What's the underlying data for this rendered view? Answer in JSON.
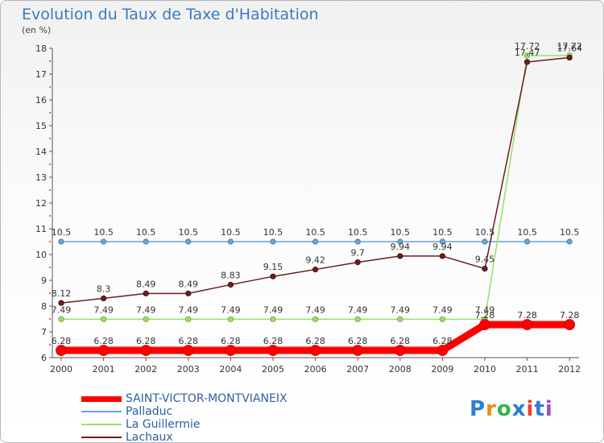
{
  "header": {
    "title": "Evolution du Taux de Taxe d'Habitation",
    "unit": "(en %)"
  },
  "chart_data": {
    "type": "line",
    "title": "Evolution du Taux de Taxe d'Habitation",
    "ylabel": "(en %)",
    "xlabel": "",
    "x": [
      "2000",
      "2001",
      "2002",
      "2003",
      "2004",
      "2005",
      "2006",
      "2007",
      "2008",
      "2009",
      "2010",
      "2011",
      "2012"
    ],
    "ylim": [
      6,
      18
    ],
    "yticks": [
      6,
      7,
      8,
      9,
      10,
      11,
      12,
      13,
      14,
      15,
      16,
      17,
      18
    ],
    "grid": false,
    "legend_position": "bottom-left",
    "series": [
      {
        "name": "SAINT-VICTOR-MONTVIANEIX",
        "color": "#ff0000",
        "values": [
          6.28,
          6.28,
          6.28,
          6.28,
          6.28,
          6.28,
          6.28,
          6.28,
          6.28,
          6.28,
          7.28,
          7.28,
          7.28
        ],
        "labels": [
          "6.28",
          "6.28",
          "6.28",
          "6.28",
          "6.28",
          "6.28",
          "6.28",
          "6.28",
          "6.28",
          "6.28",
          "7.28",
          "7.28",
          "7.28"
        ]
      },
      {
        "name": "Palladuc",
        "color": "#6aa3d6",
        "values": [
          10.5,
          10.5,
          10.5,
          10.5,
          10.5,
          10.5,
          10.5,
          10.5,
          10.5,
          10.5,
          10.5,
          10.5,
          10.5
        ],
        "labels": [
          "10.5",
          "10.5",
          "10.5",
          "10.5",
          "10.5",
          "10.5",
          "10.5",
          "10.5",
          "10.5",
          "10.5",
          "10.5",
          "10.5",
          "10.5"
        ]
      },
      {
        "name": "La Guillermie",
        "color": "#99e070",
        "values": [
          7.49,
          7.49,
          7.49,
          7.49,
          7.49,
          7.49,
          7.49,
          7.49,
          7.49,
          7.49,
          7.49,
          17.72,
          17.72
        ],
        "labels": [
          "7.49",
          "7.49",
          "7.49",
          "7.49",
          "7.49",
          "7.49",
          "7.49",
          "7.49",
          "7.49",
          "7.49",
          "7.49",
          "17.72",
          "17.72"
        ]
      },
      {
        "name": "Lachaux",
        "color": "#6e1d1d",
        "values": [
          8.12,
          8.3,
          8.49,
          8.49,
          8.83,
          9.15,
          9.42,
          9.7,
          9.94,
          9.94,
          9.45,
          17.47,
          17.64
        ],
        "labels": [
          "8.12",
          "8.3",
          "8.49",
          "8.49",
          "8.83",
          "9.15",
          "9.42",
          "9.7",
          "9.94",
          "9.94",
          "9.45",
          "17.47",
          "17.64"
        ]
      }
    ]
  },
  "logo": {
    "text": "Proxiti",
    "colors": [
      "#2a7fd0",
      "#f08a1a",
      "#38b24a",
      "#2a7fd0",
      "#e8403a",
      "#2a7fd0",
      "#9b4fc6"
    ]
  }
}
